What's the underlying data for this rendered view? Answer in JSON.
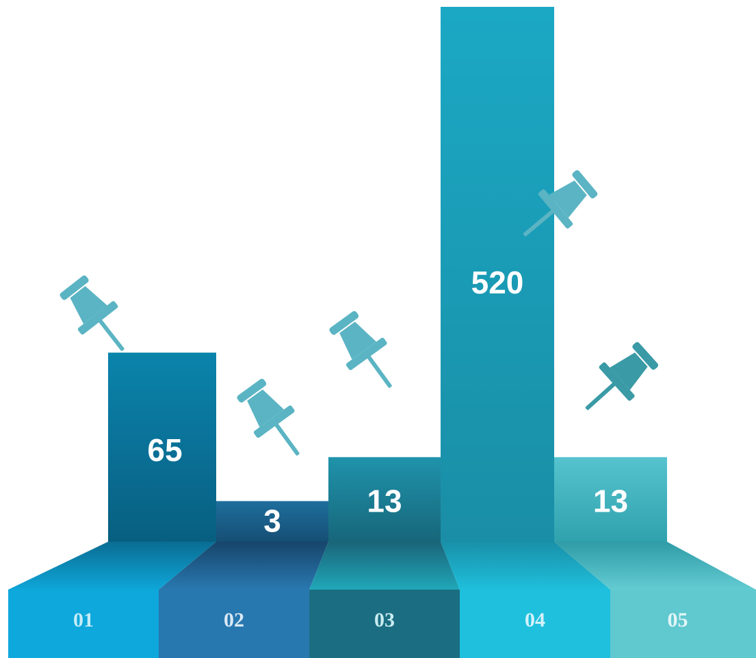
{
  "chart_data": {
    "type": "bar",
    "categories": [
      "01",
      "02",
      "03",
      "04",
      "05"
    ],
    "values": [
      65,
      3,
      13,
      520,
      13
    ],
    "title": "",
    "xlabel": "",
    "ylabel": "",
    "scale": "nonlinear-infographic",
    "grid": false,
    "legend": "none",
    "colors": {
      "bars": [
        "#0a7fa6",
        "#1b6b99",
        "#1f8fa9",
        "#1ba5c1",
        "#52bfcb"
      ],
      "bases": [
        "#0ea8dc",
        "#2878b0",
        "#1b6e82",
        "#1fc0de",
        "#60c8cf"
      ],
      "category_text": [
        "#c6ecf7",
        "#dbe9f5",
        "#c9ecf1",
        "#d4f2fa",
        "#e2f6f7"
      ],
      "value_text": "#ffffff",
      "pushpin": "#5bb4c3",
      "pushpin_dark": "#3a9aa6",
      "background": "#ffffff"
    },
    "icons": [
      "pushpin-icon",
      "pushpin-icon",
      "pushpin-icon",
      "pushpin-icon",
      "pushpin-icon"
    ]
  }
}
